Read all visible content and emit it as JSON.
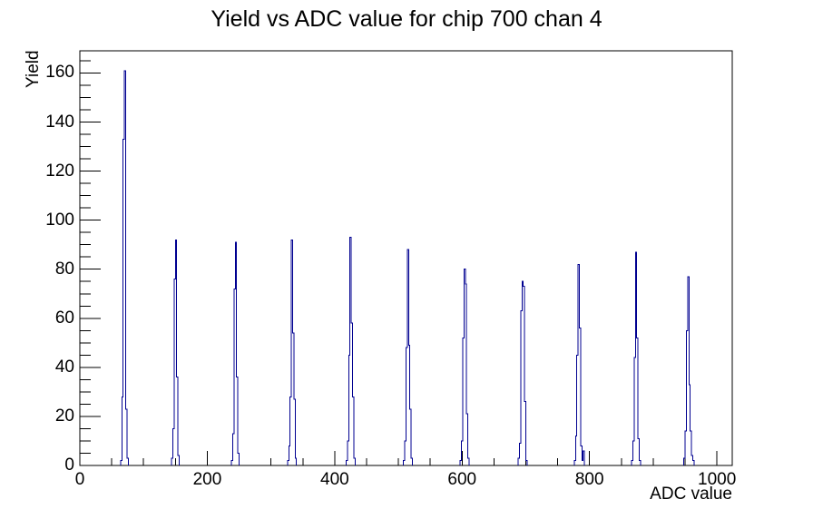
{
  "title": "Yield vs ADC value for chip 700 chan 4",
  "plot": {
    "background_color": "#ffffff",
    "frame_color": "#000000",
    "text_color": "#000000"
  },
  "chart_data": {
    "type": "histogram",
    "title": "Yield vs ADC value for chip 700 chan 4",
    "xlabel": "ADC value",
    "ylabel": "Yield",
    "x_range": [
      0,
      1024
    ],
    "y_range": [
      0,
      169.05
    ],
    "x_ticks": [
      0,
      200,
      400,
      600,
      800,
      1000
    ],
    "x_minor_step": 50,
    "y_ticks": [
      0,
      20,
      40,
      60,
      80,
      100,
      120,
      140,
      160
    ],
    "y_minor_step": 5,
    "grid": "off",
    "legend": "none",
    "line_color": "#000090",
    "bin_width": 2,
    "peaks": [
      {
        "x_start": 64,
        "bins": [
          2,
          28,
          133,
          161,
          23,
          3
        ]
      },
      {
        "x_start": 144,
        "bins": [
          3,
          15,
          76,
          92,
          36,
          4
        ]
      },
      {
        "x_start": 238,
        "bins": [
          2,
          13,
          72,
          91,
          36,
          5
        ]
      },
      {
        "x_start": 326,
        "bins": [
          2,
          8,
          28,
          92,
          54,
          27,
          3
        ]
      },
      {
        "x_start": 418,
        "bins": [
          2,
          10,
          45,
          93,
          58,
          28,
          3
        ]
      },
      {
        "x_start": 508,
        "bins": [
          2,
          10,
          48,
          88,
          49,
          23,
          3
        ]
      },
      {
        "x_start": 597,
        "bins": [
          2,
          10,
          52,
          80,
          74,
          21,
          3
        ]
      },
      {
        "x_start": 688,
        "bins": [
          3,
          9,
          63,
          75,
          73,
          26,
          2
        ]
      },
      {
        "x_start": 776,
        "bins": [
          2,
          12,
          45,
          82,
          56,
          8,
          2,
          6
        ]
      },
      {
        "x_start": 866,
        "bins": [
          2,
          10,
          44,
          87,
          52,
          11,
          2
        ]
      },
      {
        "x_start": 948,
        "bins": [
          3,
          14,
          55,
          77,
          33,
          14,
          4,
          2
        ]
      }
    ]
  }
}
